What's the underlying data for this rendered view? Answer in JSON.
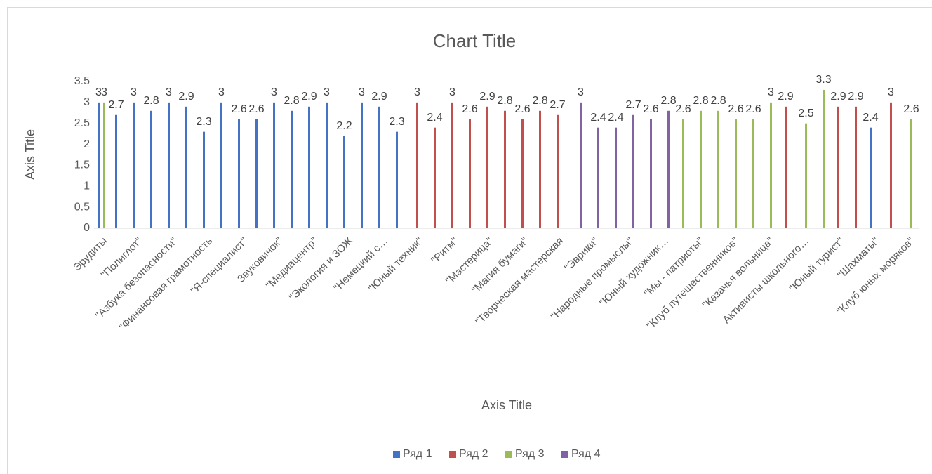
{
  "chart_data": {
    "type": "bar",
    "title": "Chart Title",
    "x_label": "Axis Title",
    "y_label": "Axis Title",
    "categories": [
      "Эрудиты",
      null,
      "\"Полиглот\"",
      null,
      "\"Азбука безопасности\"",
      null,
      "\"Финансовая грамотность",
      null,
      "\"Я-специалист\"",
      null,
      "Звуковичок\"",
      null,
      "\"Медиацентр\"",
      null,
      "\"Экология и ЗОЖ",
      null,
      "\"Немецкий с…",
      null,
      "\"Юный техник\"",
      null,
      "\"Ритм\"",
      null,
      "\"Мастерица\"",
      null,
      "\"Магия бумаги\"",
      null,
      "\"Творческая мастерская",
      null,
      "\"Эврики\"",
      null,
      "\"Народные промыслы\"",
      null,
      "\"Юный художник…",
      null,
      "\"Мы - патриоты\"",
      null,
      "\"Клуб путешественников\"",
      null,
      "\"Казачья вольница\"",
      null,
      "Активисты школьного…",
      null,
      "\"Юный турист\"",
      null,
      "\"Шахматы\"",
      null,
      "\"Клуб юных моряков\""
    ],
    "series": [
      {
        "name": "Ряд 1",
        "color": "#4472c4",
        "values": [
          3,
          2.7,
          3,
          2.8,
          3,
          2.9,
          2.3,
          3,
          2.6,
          2.6,
          3,
          2.8,
          2.9,
          3,
          2.2,
          3,
          2.9,
          2.3,
          null,
          null,
          null,
          null,
          null,
          null,
          null,
          null,
          null,
          null,
          null,
          null,
          null,
          null,
          null,
          null,
          null,
          null,
          null,
          null,
          null,
          null,
          null,
          null,
          null,
          null,
          2.4,
          null,
          null
        ]
      },
      {
        "name": "Ряд 2",
        "color": "#c0504d",
        "values": [
          null,
          null,
          null,
          null,
          null,
          null,
          null,
          null,
          null,
          null,
          null,
          null,
          null,
          null,
          null,
          null,
          null,
          null,
          3,
          2.4,
          3,
          2.6,
          2.9,
          2.8,
          2.6,
          2.8,
          2.7,
          null,
          null,
          null,
          null,
          null,
          null,
          null,
          null,
          null,
          null,
          null,
          null,
          2.9,
          null,
          null,
          2.9,
          2.9,
          null,
          3,
          null
        ]
      },
      {
        "name": "Ряд 3",
        "color": "#9bbb59",
        "values": [
          3,
          null,
          null,
          null,
          null,
          null,
          null,
          null,
          null,
          null,
          null,
          null,
          null,
          null,
          null,
          null,
          null,
          null,
          null,
          null,
          null,
          null,
          null,
          null,
          null,
          null,
          null,
          null,
          null,
          null,
          null,
          null,
          null,
          2.6,
          2.8,
          2.8,
          2.6,
          2.6,
          3,
          null,
          2.5,
          3.3,
          null,
          null,
          null,
          null,
          2.6
        ]
      },
      {
        "name": "Ряд 4",
        "color": "#8064a2",
        "values": [
          null,
          null,
          null,
          null,
          null,
          null,
          null,
          null,
          null,
          null,
          null,
          null,
          null,
          null,
          null,
          null,
          null,
          null,
          null,
          null,
          null,
          null,
          null,
          null,
          null,
          null,
          null,
          3,
          2.4,
          2.4,
          2.7,
          2.6,
          2.8,
          null,
          null,
          null,
          null,
          null,
          null,
          null,
          null,
          null,
          null,
          null,
          null,
          null,
          null
        ]
      }
    ],
    "ylim": [
      0,
      3.5
    ],
    "yticks": [
      0,
      0.5,
      1,
      1.5,
      2,
      2.5,
      3,
      3.5
    ],
    "legend": "bottom"
  }
}
